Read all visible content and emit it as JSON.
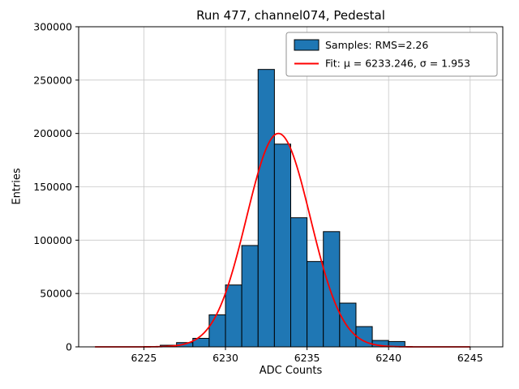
{
  "chart_data": {
    "type": "histogram",
    "title": "Run 477, channel074, Pedestal",
    "xlabel": "ADC Counts",
    "ylabel": "Entries",
    "xlim": [
      6221,
      6247
    ],
    "ylim": [
      0,
      300000
    ],
    "xticks": [
      6225,
      6230,
      6235,
      6240,
      6245
    ],
    "yticks": [
      0,
      50000,
      100000,
      150000,
      200000,
      250000,
      300000
    ],
    "grid": true,
    "colors": {
      "bar": "#1f77b4",
      "bar_edge": "#000000",
      "fit": "#ff0000",
      "grid": "#c8c8c8",
      "axes": "#000000",
      "legend_border": "#909090",
      "legend_bg": "#ffffff"
    },
    "bins": {
      "start": 6226,
      "width": 1,
      "counts": [
        1500,
        4000,
        8000,
        30000,
        58000,
        95000,
        260000,
        190000,
        121000,
        80000,
        108000,
        41000,
        19000,
        6000,
        5000
      ]
    },
    "fit_curve": {
      "shape": "gaussian",
      "mu": 6233.246,
      "sigma": 1.953,
      "amplitude": 200000,
      "x_range": [
        6222,
        6245
      ]
    },
    "legend": {
      "position": "upper right",
      "entries": [
        {
          "swatch": "histogram",
          "label": "Samples: RMS=2.26"
        },
        {
          "swatch": "line",
          "label": "Fit: μ = 6233.246, σ = 1.953"
        }
      ]
    },
    "stats": {
      "rms": 2.26,
      "fit_mu": 6233.246,
      "fit_sigma": 1.953
    }
  }
}
